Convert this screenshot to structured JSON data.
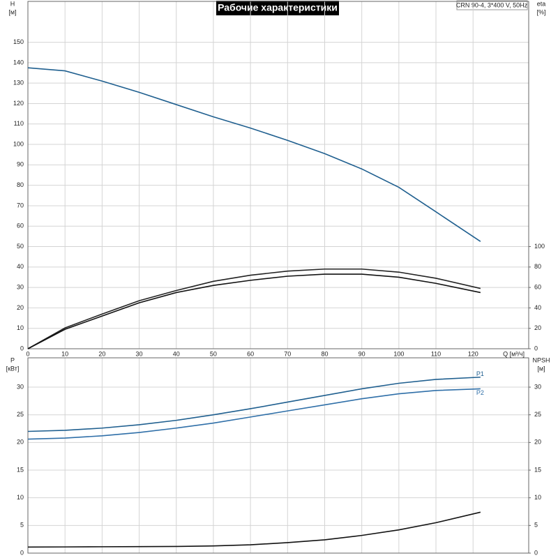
{
  "chart_data": [
    {
      "type": "line",
      "title": "Рабочие характеристики",
      "subtitle": "CRN 90-4, 3*400 V, 50Hz",
      "ylabel": "H",
      "yunit": "[м]",
      "y2label": "eta",
      "y2unit": "[%]",
      "xlabel": "Q [м³/ч]",
      "xlim": [
        0,
        135
      ],
      "xticks": [
        0,
        10,
        20,
        30,
        40,
        50,
        60,
        70,
        80,
        90,
        100,
        110,
        120
      ],
      "ylim": [
        0,
        170
      ],
      "yticks": [
        0,
        10,
        20,
        30,
        40,
        50,
        60,
        70,
        80,
        90,
        100,
        110,
        120,
        130,
        140,
        150
      ],
      "y2lim": [
        0,
        340
      ],
      "y2ticks": [
        0,
        20,
        40,
        60,
        80,
        100
      ],
      "grid": true,
      "x": [
        0,
        10,
        20,
        30,
        40,
        50,
        60,
        70,
        80,
        90,
        100,
        110,
        122
      ],
      "series": [
        {
          "color": "#1f5f8f",
          "values": [
            137.5,
            136,
            131,
            125.5,
            119.5,
            113.5,
            108,
            102,
            95.5,
            88,
            79,
            67,
            52.5
          ]
        },
        {
          "color": "#222222",
          "axis": "y2",
          "values": [
            0,
            20.4,
            34,
            47,
            57,
            66,
            72,
            76,
            78,
            78,
            75,
            69,
            59
          ]
        },
        {
          "color": "#111111",
          "axis": "y2",
          "values": [
            0,
            19,
            32,
            45,
            55,
            62,
            67,
            71,
            73,
            73,
            70,
            64,
            55
          ]
        }
      ]
    },
    {
      "type": "line",
      "ylabel": "P",
      "yunit": "[кВт]",
      "y2label": "NPSH",
      "y2unit": "[м]",
      "xlim": [
        0,
        135
      ],
      "ylim": [
        0,
        35.3
      ],
      "yticks": [
        0,
        5,
        10,
        15,
        20,
        25,
        30
      ],
      "y2lim": [
        0,
        35.3
      ],
      "y2ticks": [
        0,
        5,
        10,
        15,
        20,
        25,
        30
      ],
      "grid": true,
      "x": [
        0,
        10,
        20,
        30,
        40,
        50,
        60,
        70,
        80,
        90,
        100,
        110,
        122
      ],
      "series": [
        {
          "name": "P1",
          "color": "#1f5f8f",
          "values": [
            22.0,
            22.2,
            22.6,
            23.2,
            24.0,
            25.0,
            26.1,
            27.3,
            28.5,
            29.7,
            30.7,
            31.4,
            31.8
          ]
        },
        {
          "name": "P2",
          "color": "#2f6fa8",
          "values": [
            20.6,
            20.8,
            21.2,
            21.8,
            22.6,
            23.5,
            24.6,
            25.7,
            26.8,
            27.9,
            28.8,
            29.4,
            29.7
          ]
        },
        {
          "color": "#111111",
          "axis": "y2",
          "values": [
            1.1,
            1.12,
            1.15,
            1.18,
            1.2,
            1.3,
            1.5,
            1.9,
            2.4,
            3.2,
            4.2,
            5.5,
            7.4
          ]
        }
      ]
    }
  ]
}
